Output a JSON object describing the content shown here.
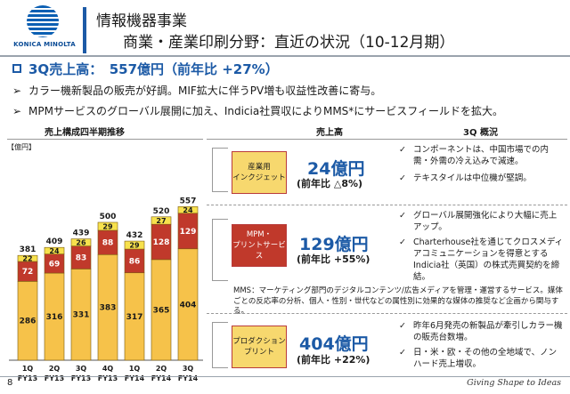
{
  "logo": {
    "text": "KONICA MINOLTA"
  },
  "header": {
    "title_line1": "情報機器事業",
    "title_line2": "商業・産業印刷分野：直近の状況（10-12月期）"
  },
  "headline": "3Q売上高：　557億円（前年比 +27%）",
  "bullets": [
    "カラー機新製品の販売が好調。MIF拡大に伴うPV増も収益性改善に寄与。",
    "MPMサービスのグローバル展開に加え、Indicia社買収によりMMS*にサービスフィールドを拡大。"
  ],
  "chart": {
    "title": "売上構成四半期推移",
    "unit": "【億円】"
  },
  "chart_data": {
    "type": "bar",
    "stacked": true,
    "categories": [
      "1Q FY13",
      "2Q FY13",
      "3Q FY13",
      "4Q FY13",
      "1Q FY14",
      "2Q FY14",
      "3Q FY14"
    ],
    "tick_quarters": [
      "1Q",
      "2Q",
      "3Q",
      "4Q",
      "1Q",
      "2Q",
      "3Q"
    ],
    "tick_years": [
      "FY13",
      "FY13",
      "FY13",
      "FY13",
      "FY14",
      "FY14",
      "FY14"
    ],
    "totals": [
      381,
      409,
      439,
      500,
      432,
      520,
      557
    ],
    "series": [
      {
        "values": [
          286,
          316,
          331,
          383,
          317,
          365,
          404
        ],
        "color": "#f6c24a"
      },
      {
        "values": [
          72,
          69,
          83,
          88,
          86,
          128,
          129
        ],
        "color": "#c0392b"
      },
      {
        "values": [
          22,
          24,
          26,
          29,
          29,
          27,
          24
        ],
        "color": "#f7e14d"
      }
    ],
    "ylim": [
      0,
      600
    ],
    "grid": false
  },
  "panel": {
    "col_sales": "売上高",
    "col_overview": "3Q 概況",
    "segments": [
      {
        "name": "産業用\nインクジェット",
        "sales": "24億円",
        "yoy": "(前年比 △8%)",
        "points": [
          "コンポーネントは、中国市場での内需・外需の冷え込みで減速。",
          "テキスタイルは中位機が堅調。"
        ]
      },
      {
        "name": "MPM・\nプリントサービス",
        "sales": "129億円",
        "yoy": "(前年比 +55%)",
        "points": [
          "グローバル展開強化により大幅に売上アップ。",
          "Charterhouse社を通じてクロスメディアコミュニケーションを得意とするIndicia社（英国）の株式売買契約を締結。"
        ]
      },
      {
        "name": "プロダクション\nプリント",
        "sales": "404億円",
        "yoy": "(前年比 +22%)",
        "points": [
          "昨年6月発売の新製品が牽引しカラー機の販売台数増。",
          "日・米・欧・その他の全地域で、ノンハード売上増収。"
        ]
      }
    ],
    "mms_note": "MMS：マーケティング部門のデジタルコンテンツ/広告メディアを管理・運営するサービス。媒体ごとの反応率の分析、個人・性別・世代などの属性別に効果的な媒体の推奨など企画から関与する。"
  },
  "footer": {
    "page": "8",
    "tagline": "Giving Shape to Ideas"
  }
}
